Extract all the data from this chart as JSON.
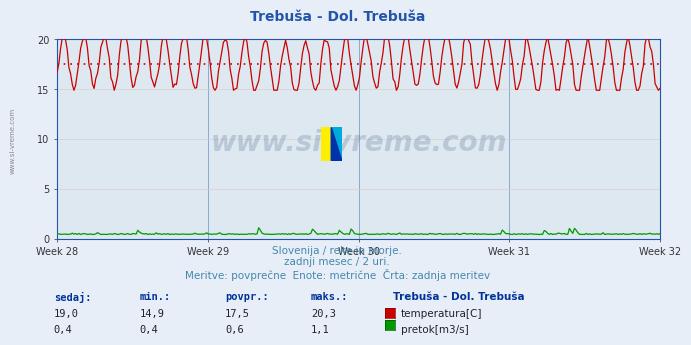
{
  "title": "Trebuša - Dol. Trebuša",
  "title_color": "#2255aa",
  "bg_color": "#e8eef8",
  "plot_bg_color": "#dde8f0",
  "grid_color_v": "#aabbcc",
  "grid_color_h": "#ddcccc",
  "x_tick_labels": [
    "Week 28",
    "Week 29",
    "Week 30",
    "Week 31",
    "Week 32"
  ],
  "x_tick_positions": [
    0,
    84,
    168,
    252,
    336
  ],
  "n_points": 360,
  "ylim": [
    0,
    20
  ],
  "y_ticks": [
    0,
    5,
    10,
    15,
    20
  ],
  "temp_color": "#cc0000",
  "flow_color": "#009900",
  "avg_line_color": "#cc0000",
  "temp_avg": 17.5,
  "temp_min": 14.9,
  "temp_max": 20.3,
  "flow_avg": 0.6,
  "flow_min": 0.4,
  "flow_max": 1.1,
  "temp_current": 19.0,
  "flow_current": 0.4,
  "subtitle1": "Slovenija / reke in morje.",
  "subtitle2": "zadnji mesec / 2 uri.",
  "subtitle3": "Meritve: povprečne  Enote: metrične  Črta: zadnja meritev",
  "subtitle_color": "#4488aa",
  "watermark": "www.si-vreme.com",
  "watermark_color": "#1a3a6e",
  "legend_title": "Trebuša - Dol. Trebuša",
  "left_label": "www.si-vreme.com",
  "table_labels": [
    "sedaj:",
    "min.:",
    "povpr.:",
    "maks.:"
  ],
  "table_color": "#003399",
  "axis_color": "#2255aa",
  "tick_color": "#333333"
}
